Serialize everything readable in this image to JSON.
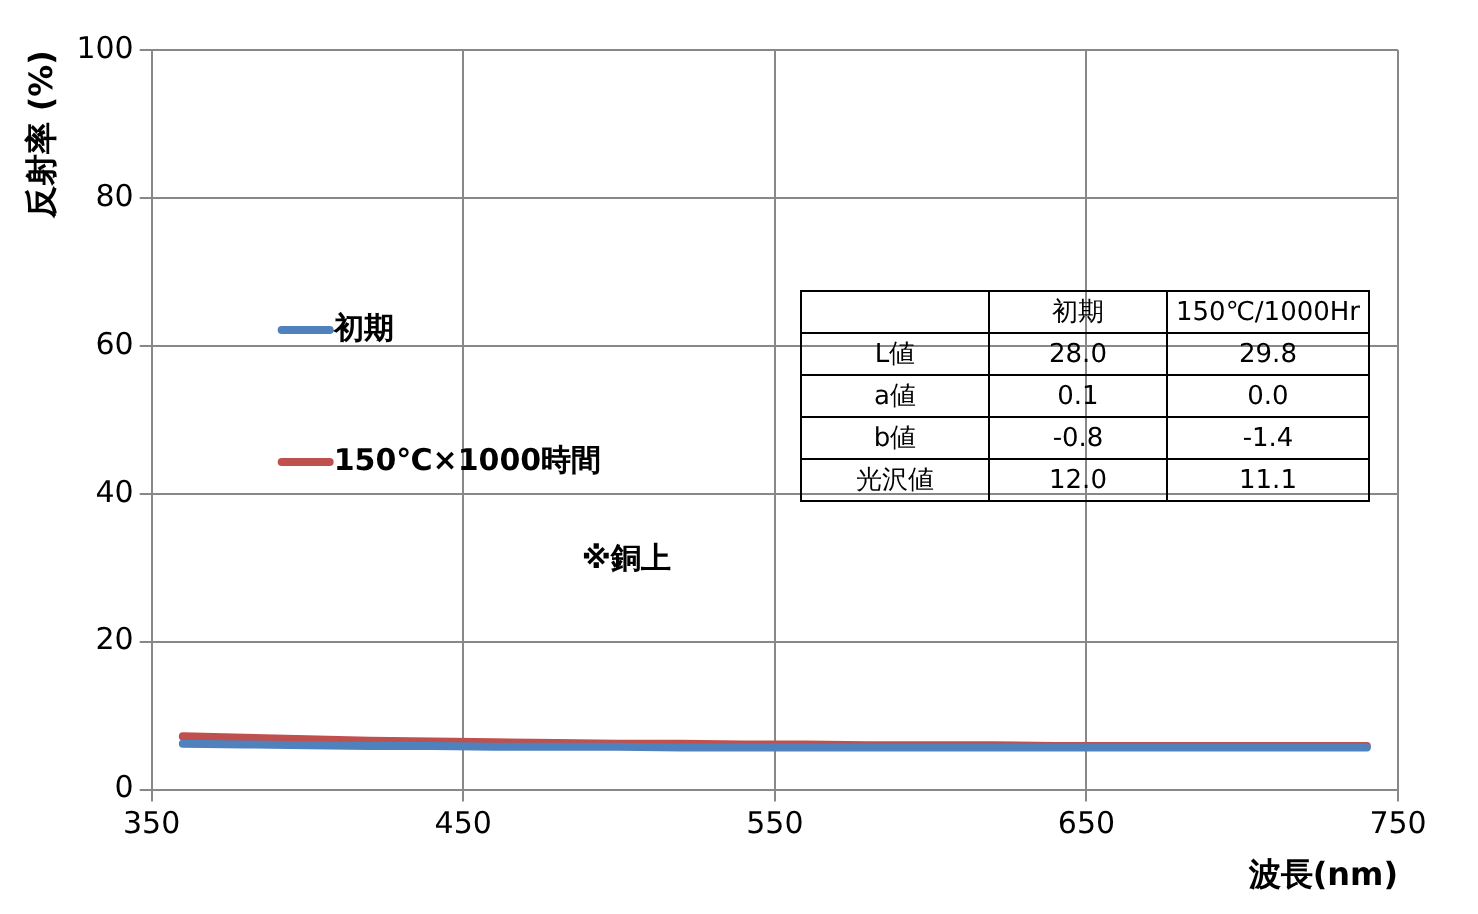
{
  "chart_data": [
    {
      "type": "line",
      "xlabel": "波長(nm)",
      "ylabel": "反射率 (%)",
      "x": [
        360,
        380,
        400,
        420,
        440,
        460,
        480,
        500,
        520,
        540,
        560,
        580,
        600,
        620,
        640,
        660,
        680,
        700,
        720,
        740
      ],
      "series": [
        {
          "name": "初期",
          "color": "#4f81bd",
          "values": [
            6.2,
            6.1,
            6.0,
            5.9,
            5.9,
            5.8,
            5.8,
            5.8,
            5.7,
            5.7,
            5.7,
            5.7,
            5.7,
            5.7,
            5.7,
            5.7,
            5.7,
            5.7,
            5.7,
            5.7
          ]
        },
        {
          "name": "150℃×1000時間",
          "color": "#c0504d",
          "values": [
            7.2,
            7.0,
            6.8,
            6.6,
            6.5,
            6.4,
            6.3,
            6.2,
            6.2,
            6.1,
            6.1,
            6.0,
            6.0,
            6.0,
            5.9,
            5.9,
            5.9,
            5.9,
            5.9,
            5.9
          ]
        }
      ],
      "xlim": [
        350,
        750
      ],
      "xticks": [
        350,
        450,
        550,
        650,
        750
      ],
      "ylim": [
        0,
        100
      ],
      "yticks": [
        0,
        20,
        40,
        60,
        80,
        100
      ],
      "grid": true,
      "legend": "left",
      "marker": "none",
      "line_style": "solid",
      "annotations": [
        "※銅上"
      ]
    },
    {
      "type": "other",
      "annotations": [
        "初期 150℃/1000Hr",
        "L値 28.0 29.8",
        "a値 0.1 0.0",
        "b値 -0.8 -1.4",
        "光沢値 12.0 11.1"
      ]
    }
  ]
}
